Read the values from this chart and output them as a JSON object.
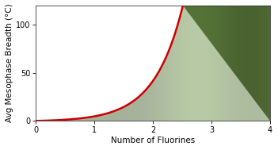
{
  "title": "",
  "xlabel": "Number of Fluorines",
  "ylabel": "Avg Mesophase Breadth (°C)",
  "xlim": [
    0,
    4
  ],
  "ylim": [
    0,
    120
  ],
  "xticks": [
    0,
    1,
    2,
    3,
    4
  ],
  "yticks": [
    0,
    50,
    100
  ],
  "curve_color": "#cc0000",
  "curve_linewidth": 1.8,
  "curve_coeff_a": 0.7,
  "curve_coeff_b": 2.05,
  "background_color": "#ffffff",
  "plot_bg": "#ffffff",
  "axis_color": "#333333",
  "tick_fontsize": 7,
  "label_fontsize": 7.5,
  "figsize": [
    3.51,
    1.89
  ],
  "dpi": 100
}
